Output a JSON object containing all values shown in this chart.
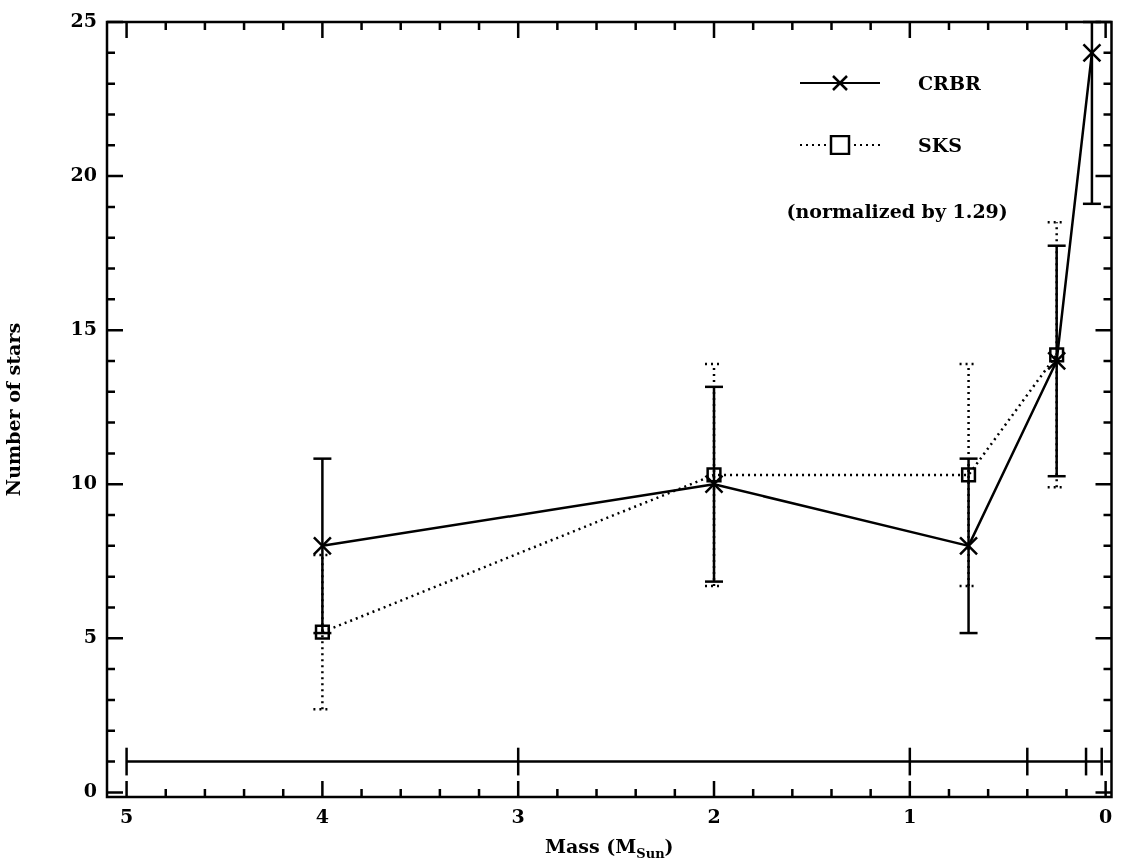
{
  "chart_data": {
    "type": "line",
    "xlabel": "Mass (M$_{Sun}$)",
    "ylabel": "Number of stars",
    "xlim": [
      5.1,
      -0.03
    ],
    "ylim": [
      -0.15,
      25
    ],
    "xticks": [
      5,
      {
        "value": 4.8,
        "label": null
      },
      {
        "value": 4.6,
        "label": null
      },
      {
        "value": 4.4,
        "label": null
      },
      {
        "value": 4.2,
        "label": null
      },
      4,
      {
        "value": 3.8,
        "label": null
      },
      {
        "value": 3.6,
        "label": null
      },
      {
        "value": 3.4,
        "label": null
      },
      {
        "value": 3.2,
        "label": null
      },
      3,
      {
        "value": 2.8,
        "label": null
      },
      {
        "value": 2.6,
        "label": null
      },
      {
        "value": 2.4,
        "label": null
      },
      {
        "value": 2.2,
        "label": null
      },
      2,
      {
        "value": 1.8,
        "label": null
      },
      {
        "value": 1.6,
        "label": null
      },
      {
        "value": 1.4,
        "label": null
      },
      {
        "value": 1.2,
        "label": null
      },
      1,
      {
        "value": 0.8,
        "label": null
      },
      {
        "value": 0.6,
        "label": null
      },
      {
        "value": 0.4,
        "label": null
      },
      {
        "value": 0.2,
        "label": null
      },
      0
    ],
    "yticks": [
      0,
      {
        "value": 1,
        "label": null
      },
      {
        "value": 2,
        "label": null
      },
      {
        "value": 3,
        "label": null
      },
      {
        "value": 4,
        "label": null
      },
      5,
      {
        "value": 6,
        "label": null
      },
      {
        "value": 7,
        "label": null
      },
      {
        "value": 8,
        "label": null
      },
      {
        "value": 9,
        "label": null
      },
      10,
      {
        "value": 11,
        "label": null
      },
      {
        "value": 12,
        "label": null
      },
      {
        "value": 13,
        "label": null
      },
      {
        "value": 14,
        "label": null
      },
      15,
      {
        "value": 16,
        "label": null
      },
      {
        "value": 17,
        "label": null
      },
      {
        "value": 18,
        "label": null
      },
      {
        "value": 19,
        "label": null
      },
      20,
      {
        "value": 21,
        "label": null
      },
      {
        "value": 22,
        "label": null
      },
      {
        "value": 23,
        "label": null
      },
      {
        "value": 24,
        "label": null
      },
      25
    ],
    "grid": false,
    "legend": "top right",
    "annotations": [
      "(normalized by 1.29)"
    ],
    "series": [
      {
        "name": "CRBR",
        "color": "#000000",
        "marker": "cross",
        "line_style": "solid",
        "x": [
          4,
          2,
          0.7,
          0.25,
          0.07
        ],
        "values": [
          8,
          10,
          8,
          14,
          24
        ],
        "errors": [
          2.83,
          3.16,
          2.83,
          3.74,
          [
            19.1,
            25
          ]
        ]
      },
      {
        "name": "SKS",
        "color": "#000000",
        "marker": "square",
        "line_style": "dotted",
        "x": [
          4,
          2,
          0.7,
          0.25
        ],
        "values": [
          5.2,
          10.3,
          10.3,
          14.2
        ],
        "errors": [
          2.5,
          3.6,
          3.6,
          4.3
        ]
      },
      {
        "color": "#000000",
        "marker": "none",
        "line_style": "solid",
        "x": [
          5,
          3,
          1,
          0.4,
          0.1,
          0.02
        ],
        "values": [
          1,
          1,
          1,
          1,
          1,
          1
        ],
        "errors": [
          0.45,
          0.45,
          0.45,
          0.45,
          0.45,
          0.45
        ]
      }
    ]
  }
}
